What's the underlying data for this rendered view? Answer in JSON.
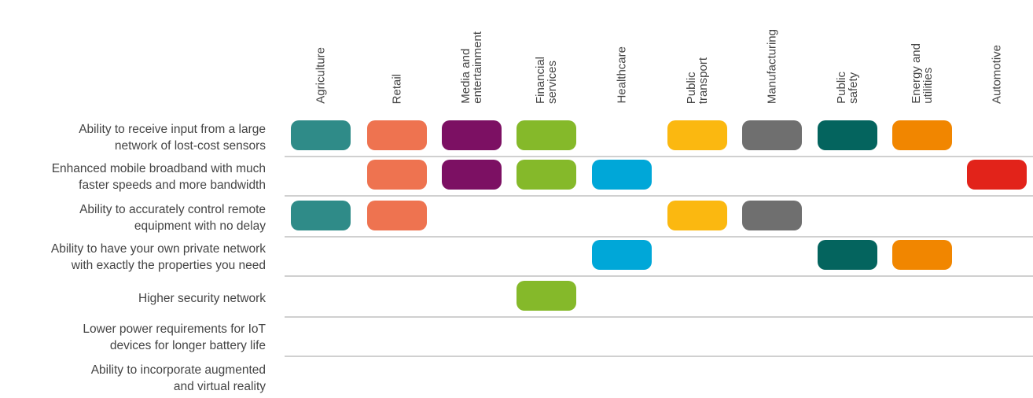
{
  "chart_data": {
    "type": "table",
    "title": "",
    "columns": [
      {
        "label": "Agriculture",
        "color": "#2f8b88"
      },
      {
        "label": "Retail",
        "color": "#ee7350"
      },
      {
        "label": "Media and\nentertainment",
        "color": "#7c1063"
      },
      {
        "label": "Financial\nservices",
        "color": "#85b92a"
      },
      {
        "label": "Healthcare",
        "color": "#00a7d8"
      },
      {
        "label": "Public\ntransport",
        "color": "#fbb810"
      },
      {
        "label": "Manufacturing",
        "color": "#6f6f6f"
      },
      {
        "label": "Public\nsafety",
        "color": "#04645e"
      },
      {
        "label": "Energy and\nutilities",
        "color": "#f18600"
      },
      {
        "label": "Automotive",
        "color": "#e2231a"
      }
    ],
    "rows": [
      {
        "label": "Ability to receive input from a large\nnetwork of lost-cost sensors",
        "marks": [
          "Agriculture",
          "Retail",
          "Media and entertainment",
          "Financial services",
          "Public transport",
          "Manufacturing",
          "Public safety",
          "Energy and utilities"
        ]
      },
      {
        "label": "Enhanced mobile broadband with much\nfaster speeds and more bandwidth",
        "marks": [
          "Retail",
          "Media and entertainment",
          "Financial services",
          "Healthcare",
          "Automotive"
        ]
      },
      {
        "label": "Ability to accurately control remote\nequipment with no delay",
        "marks": [
          "Agriculture",
          "Retail",
          "Public transport",
          "Manufacturing"
        ]
      },
      {
        "label": "Ability to have your own private network\nwith exactly the properties you need",
        "marks": [
          "Healthcare",
          "Public safety",
          "Energy and utilities"
        ]
      },
      {
        "label": "Higher security network",
        "marks": [
          "Financial services"
        ]
      },
      {
        "label": "Lower power requirements for IoT\ndevices for longer battery life",
        "marks": []
      },
      {
        "label": "Ability to incorporate augmented\nand virtual reality",
        "marks": []
      }
    ]
  }
}
